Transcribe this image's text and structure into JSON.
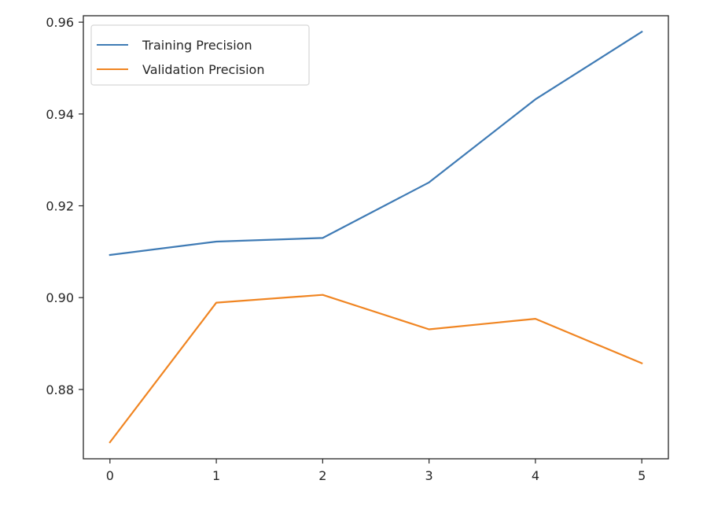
{
  "chart_data": {
    "type": "line",
    "x": [
      0,
      1,
      2,
      3,
      4,
      5
    ],
    "xlim": [
      -0.25,
      5.25
    ],
    "ylim": [
      0.8649,
      0.9614
    ],
    "xticks": [
      "0",
      "1",
      "2",
      "3",
      "4",
      "5"
    ],
    "yticks": [
      0.88,
      0.9,
      0.92,
      0.94,
      0.96
    ],
    "ytick_labels": [
      "0.88",
      "0.90",
      "0.92",
      "0.94",
      "0.96"
    ],
    "legend_position": "upper-left",
    "grid": false,
    "series": [
      {
        "name": "Training Precision",
        "color": "#3f7bb5",
        "values": [
          0.9093,
          0.9122,
          0.913,
          0.9251,
          0.9432,
          0.9579
        ]
      },
      {
        "name": "Validation Precision",
        "color": "#f08522",
        "values": [
          0.8685,
          0.8989,
          0.9006,
          0.8931,
          0.8954,
          0.8857
        ]
      }
    ]
  }
}
